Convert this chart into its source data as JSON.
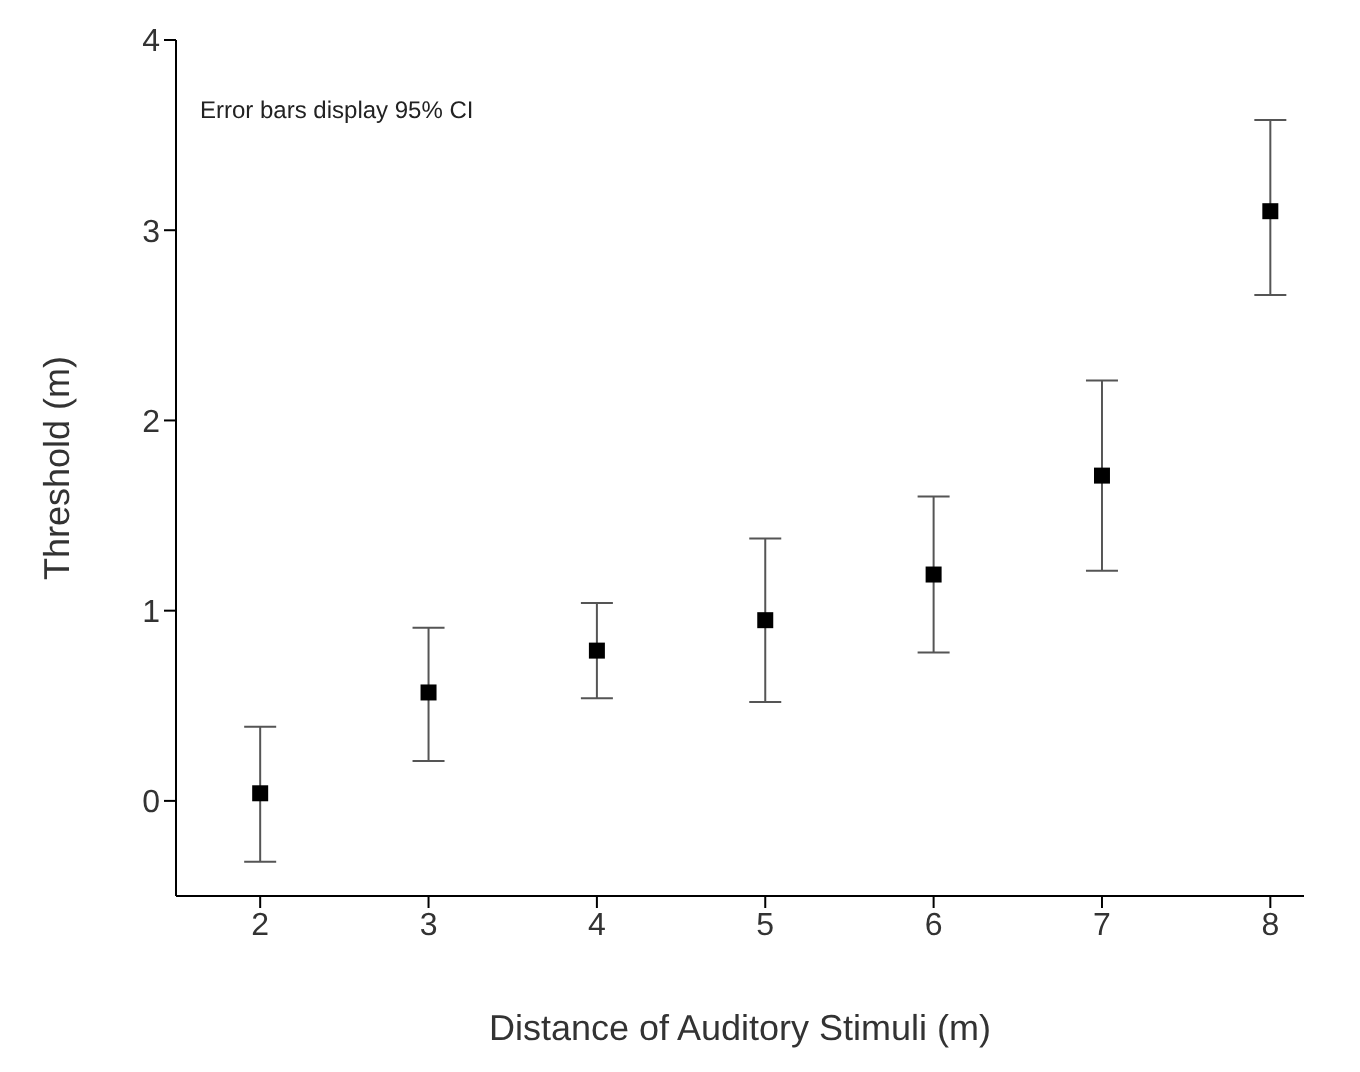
{
  "chart_data": {
    "type": "scatter",
    "xlabel": "Distance of Auditory Stimuli (m)",
    "ylabel": "Threshold (m)",
    "annotations": [
      "Error bars display 95% CI"
    ],
    "x": [
      2,
      3,
      4,
      5,
      6,
      7,
      8
    ],
    "series": [
      {
        "color": "#000000",
        "values": [
          0.04,
          0.57,
          0.79,
          0.95,
          1.19,
          1.71,
          3.1
        ],
        "errors": [
          [
            -0.32,
            0.39
          ],
          [
            0.21,
            0.91
          ],
          [
            0.54,
            1.04
          ],
          [
            0.52,
            1.38
          ],
          [
            0.78,
            1.6
          ],
          [
            1.21,
            2.21
          ],
          [
            2.66,
            3.58
          ]
        ]
      }
    ],
    "xlim": [
      1.5,
      8.2
    ],
    "xticks": [
      2,
      3,
      4,
      5,
      6,
      7,
      8
    ],
    "ylim": [
      -0.5,
      4
    ],
    "yticks": [
      0,
      1,
      2,
      3,
      4
    ],
    "marker": "square",
    "grid": false,
    "legend": false
  }
}
